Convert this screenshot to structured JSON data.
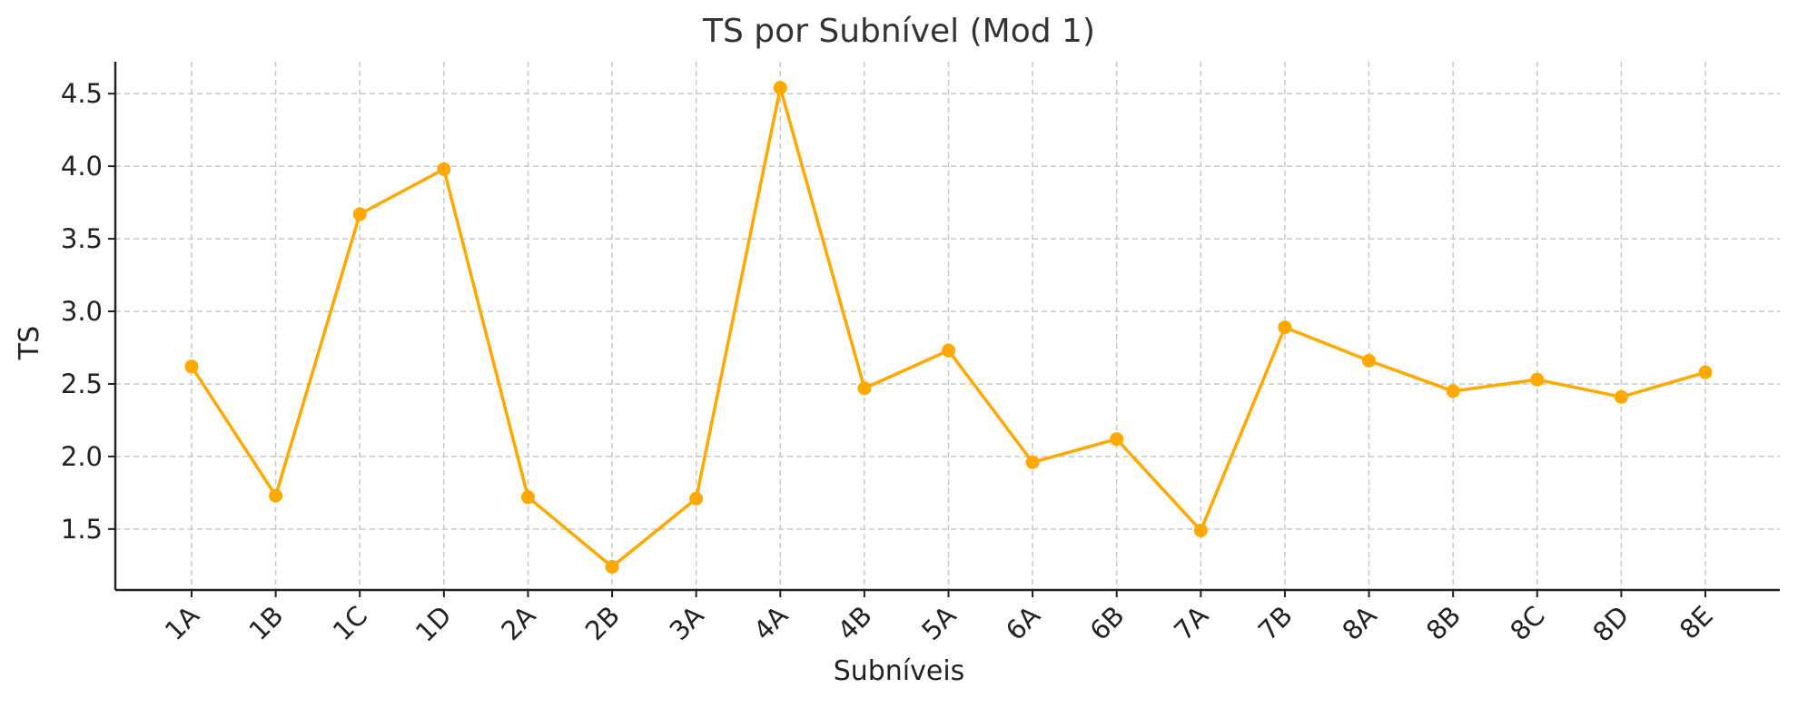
{
  "chart_data": {
    "type": "line",
    "title": "TS por Subnível (Mod 1)",
    "xlabel": "Subníveis",
    "ylabel": "TS",
    "categories": [
      "1A",
      "1B",
      "1C",
      "1D",
      "2A",
      "2B",
      "3A",
      "4A",
      "4B",
      "5A",
      "6A",
      "6B",
      "7A",
      "7B",
      "8A",
      "8B",
      "8C",
      "8D",
      "8E"
    ],
    "series": [
      {
        "values": [
          2.62,
          1.73,
          3.67,
          3.98,
          1.72,
          1.24,
          1.71,
          4.54,
          2.47,
          2.73,
          1.96,
          2.12,
          1.49,
          2.89,
          2.66,
          2.45,
          2.53,
          2.41,
          2.58
        ]
      }
    ],
    "ylim": [
      1.08,
      4.72
    ],
    "yticks": [
      "1.5",
      "2.0",
      "2.5",
      "3.0",
      "3.5",
      "4.0",
      "4.5"
    ],
    "grid": true,
    "color": "#FFA800"
  }
}
